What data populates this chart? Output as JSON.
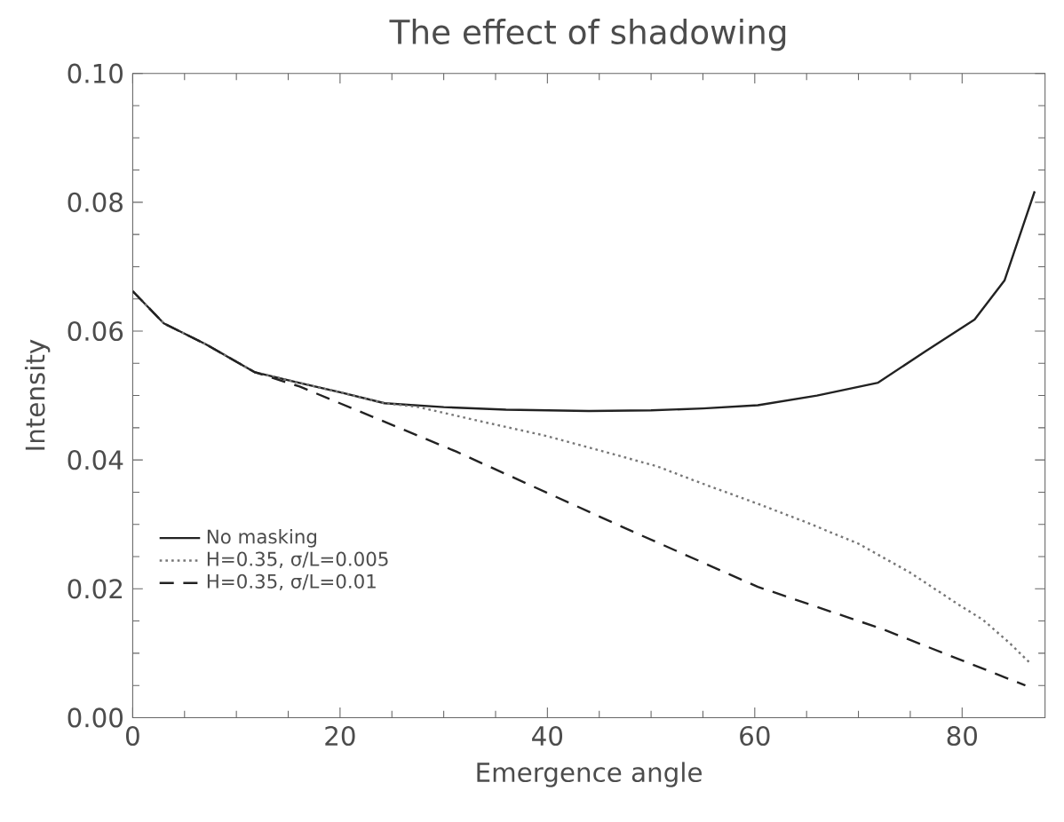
{
  "chart_data": {
    "type": "line",
    "title": "The effect of shadowing",
    "xlabel": "Emergence angle",
    "ylabel": "Intensity",
    "xlim": [
      0,
      88
    ],
    "ylim": [
      0,
      0.1
    ],
    "xticks": [
      0,
      20,
      40,
      60,
      80
    ],
    "yticks": [
      {
        "value": 0,
        "label": "0.00"
      },
      {
        "value": 0.02,
        "label": "0.02"
      },
      {
        "value": 0.04,
        "label": "0.04"
      },
      {
        "value": 0.06,
        "label": "0.06"
      },
      {
        "value": 0.08,
        "label": "0.08"
      },
      {
        "value": 0.1,
        "label": "0.10"
      }
    ],
    "legend": "bottom left",
    "grid": false,
    "marker": "none",
    "series": [
      {
        "name": "No masking",
        "color": "#222222",
        "line_style": "solid",
        "x": [
          0,
          3,
          7,
          11.8,
          16,
          20,
          24.3,
          30,
          36,
          44,
          50,
          55,
          60.3,
          66,
          71.9,
          76.4,
          81.2,
          84.1,
          87
        ],
        "values": [
          0.0662,
          0.0612,
          0.058,
          0.0536,
          0.052,
          0.0505,
          0.0488,
          0.0482,
          0.0478,
          0.0476,
          0.0477,
          0.048,
          0.0485,
          0.05,
          0.052,
          0.0568,
          0.0618,
          0.0679,
          0.0817
        ]
      },
      {
        "name": "H=0.35,  σ/L=0.005",
        "color": "#777777",
        "line_style": "dotted",
        "x": [
          0,
          3,
          7,
          11.8,
          16,
          20,
          24.3,
          27.6,
          33,
          39.7,
          45,
          50.6,
          55,
          60.3,
          65,
          70,
          75,
          79.7,
          82,
          84.5,
          86.6
        ],
        "values": [
          0.0662,
          0.0612,
          0.058,
          0.0536,
          0.052,
          0.0505,
          0.0488,
          0.0482,
          0.0462,
          0.0438,
          0.0415,
          0.039,
          0.0363,
          0.0332,
          0.0303,
          0.027,
          0.0225,
          0.0175,
          0.0152,
          0.0117,
          0.0084
        ]
      },
      {
        "name": "H=0.35,  σ/L=0.01",
        "color": "#222222",
        "line_style": "dashed",
        "x": [
          0,
          3,
          7,
          11.8,
          16.1,
          31.2,
          48.2,
          60.3,
          72.4,
          86.1
        ],
        "values": [
          0.0662,
          0.0612,
          0.058,
          0.0536,
          0.0514,
          0.0413,
          0.0289,
          0.0203,
          0.0137,
          0.005
        ]
      }
    ]
  }
}
